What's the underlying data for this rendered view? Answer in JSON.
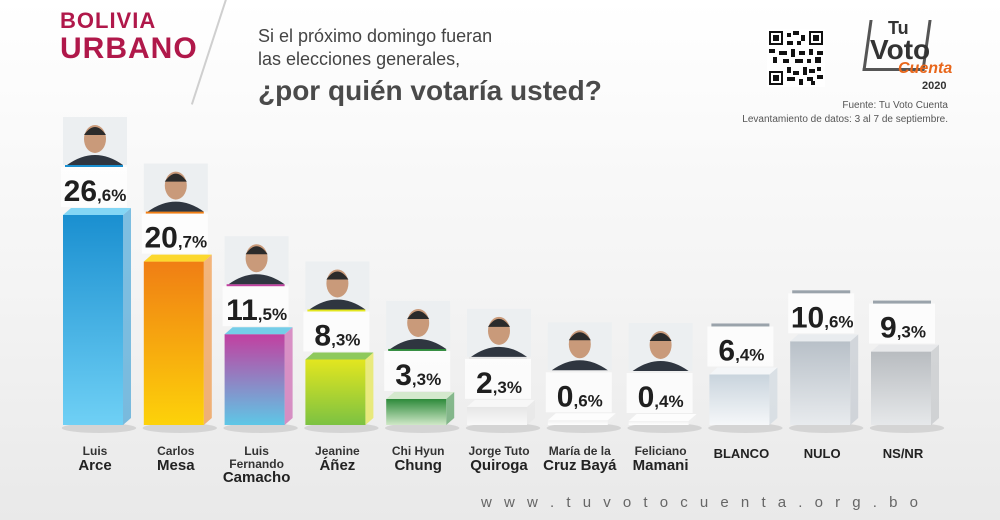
{
  "region": {
    "line1": "BOLIVIA",
    "line2": "URBANO"
  },
  "question": {
    "line1": "Si el próximo domingo fueran",
    "line2": "las elecciones generales,",
    "line3": "¿por quién votaría usted?"
  },
  "logo": {
    "tu": "Tu",
    "voto": "Voto",
    "cuenta": "Cuenta",
    "year": "2020"
  },
  "source": {
    "line1": "Fuente: Tu Voto Cuenta",
    "line2": "Levantamiento de datos: 3 al 7 de septiembre."
  },
  "footer": {
    "url": "w w w . t u v o t o c u e n t a . o r g . b o"
  },
  "chart_data": {
    "type": "bar",
    "categories": [
      "Luis Arce",
      "Carlos Mesa",
      "Luis Fernando Camacho",
      "Jeanine Áñez",
      "Chi Hyun Chung",
      "Jorge Tuto Quiroga",
      "María de la Cruz Bayá",
      "Feliciano Mamani",
      "BLANCO",
      "NULO",
      "NS/NR"
    ],
    "values": [
      26.6,
      20.7,
      11.5,
      8.3,
      3.3,
      2.3,
      0.6,
      0.4,
      6.4,
      10.6,
      9.3
    ],
    "value_labels": [
      {
        "int": "26",
        "dec": ",6%"
      },
      {
        "int": "20",
        "dec": ",7%"
      },
      {
        "int": "11",
        "dec": ",5%"
      },
      {
        "int": "8",
        "dec": ",3%"
      },
      {
        "int": "3",
        "dec": ",3%"
      },
      {
        "int": "2",
        "dec": ",3%"
      },
      {
        "int": "0",
        "dec": ",6%"
      },
      {
        "int": "0",
        "dec": ",4%"
      },
      {
        "int": "6",
        "dec": ",4%"
      },
      {
        "int": "10",
        "dec": ",6%"
      },
      {
        "int": "9",
        "dec": ",3%"
      }
    ],
    "label_lines": [
      [
        "Luis",
        "Arce"
      ],
      [
        "Carlos",
        "Mesa"
      ],
      [
        "Luis Fernando",
        "Camacho"
      ],
      [
        "Jeanine",
        "Áñez"
      ],
      [
        "Chi Hyun",
        "Chung"
      ],
      [
        "Jorge Tuto",
        "Quiroga"
      ],
      [
        "María de la",
        "Cruz Bayá"
      ],
      [
        "Feliciano",
        "Mamani"
      ],
      [
        "",
        "BLANCO"
      ],
      [
        "",
        "NULO"
      ],
      [
        "",
        "NS/NR"
      ]
    ],
    "has_photo": [
      true,
      true,
      true,
      true,
      true,
      true,
      true,
      true,
      false,
      false,
      false
    ],
    "colors": [
      [
        "#1a8fd0",
        "#6fd0f5"
      ],
      [
        "#f07e14",
        "#fdd20a"
      ],
      [
        "#c23fa0",
        "#5ec7e6"
      ],
      [
        "#e3e61f",
        "#7cc242"
      ],
      [
        "#2d8a3a",
        "#cfe8c7"
      ],
      [
        "#e6e6e6",
        "#f8f8f8"
      ],
      [
        "#f0f0f0",
        "#ffffff"
      ],
      [
        "#f0f0f0",
        "#ffffff"
      ],
      [
        "#c9d4dd",
        "#f5f7f9"
      ],
      [
        "#b8c0c8",
        "#e8ebee"
      ],
      [
        "#b8bcc0",
        "#e6e8ea"
      ]
    ],
    "ylim": [
      0,
      30
    ],
    "grid": false,
    "legend": "none"
  }
}
